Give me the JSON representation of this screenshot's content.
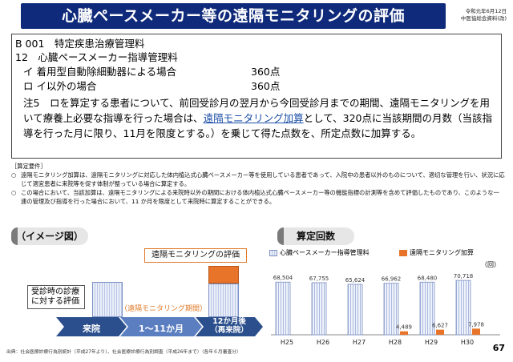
{
  "header": {
    "title": "心臓ペースメーカー等の遠隔モニタリングの評価",
    "meta_line1": "令和元年6月12日",
    "meta_line2": "中医協総会資料(改)"
  },
  "rule_box": {
    "line1": "B 001　特定疾患治療管理料",
    "line2": "12　心臓ペースメーカー指導管理料",
    "item1_label": "イ 着用型自動除細動器による場合",
    "item1_points": "360点",
    "item2_label": "ロ イ以外の場合",
    "item2_points": "360点",
    "note_prefix": "注5　ロを算定する患者について、前回受診月の翌月から今回受診月までの期間、遠隔モニタリングを用いて療養上必要な指導を行った場合は、",
    "note_link": "遠隔モニタリング加算",
    "note_suffix": "として、320点に当該期間の月数（当該指導を行った月に限り、11月を限度とする。）を乗じて得た点数を、所定点数に加算する。"
  },
  "requirements": {
    "heading": "［算定要件］",
    "items": [
      {
        "marker": "○",
        "text": "遠隔モニタリング加算は、遠隔モニタリングに対応した体内植込式心臓ペースメーカー等を使用している患者であって、入院中の患者以外のものについて、適切な管理を行い、状況に応じて適宜患者に来院等を促す体制が整っている場合に算定する。"
      },
      {
        "marker": "○",
        "text": "この場合において、当該加算は、遠隔モニタリングによる来院時以外の期間における体内植込式心臓ペースメーカー等の機能指標の計測等を含めて評価したものであり、このような一連の管理及び指導を行った場合において、11 か月を限度として来院時に算定することができる。"
      }
    ]
  },
  "image_panel": {
    "label": "（イメージ図）",
    "box_label": "遠隔モニタリングの評価",
    "visit_box": "受診時の診療に対する評価",
    "period_label": "（遠隔モニタリング期間）",
    "arrow1": "来院",
    "arrow2": "1～11か月",
    "arrow3_line1": "12か月後",
    "arrow3_line2": "（再来院）"
  },
  "chart_panel": {
    "label": "算定回数",
    "unit": "（回）"
  },
  "chart_data": {
    "type": "bar",
    "categories": [
      "H25",
      "H26",
      "H27",
      "H28",
      "H29",
      "H30"
    ],
    "series": [
      {
        "name": "心臓ペースメーカー指導管理料",
        "values": [
          68504,
          67755,
          65624,
          66962,
          68480,
          70718
        ],
        "labels": [
          "68,504",
          "67,755",
          "65,624",
          "66,962",
          "68,480",
          "70,718"
        ],
        "color": "#e8eef8",
        "pattern": "hatch-blue"
      },
      {
        "name": "遠隔モニタリング加算",
        "values": [
          null,
          null,
          null,
          4489,
          6627,
          7978
        ],
        "labels": [
          "",
          "",
          "",
          "4,489",
          "6,627",
          "7,978"
        ],
        "color": "#e8742a"
      }
    ],
    "ylim": [
      0,
      75000
    ],
    "legend": "top"
  },
  "footer": {
    "source": "出典：社会医療診療行為別統計（平成27年より）、社会医療診療行為別調査（平成26年まで）（各年６月審査分）",
    "page": "67"
  }
}
